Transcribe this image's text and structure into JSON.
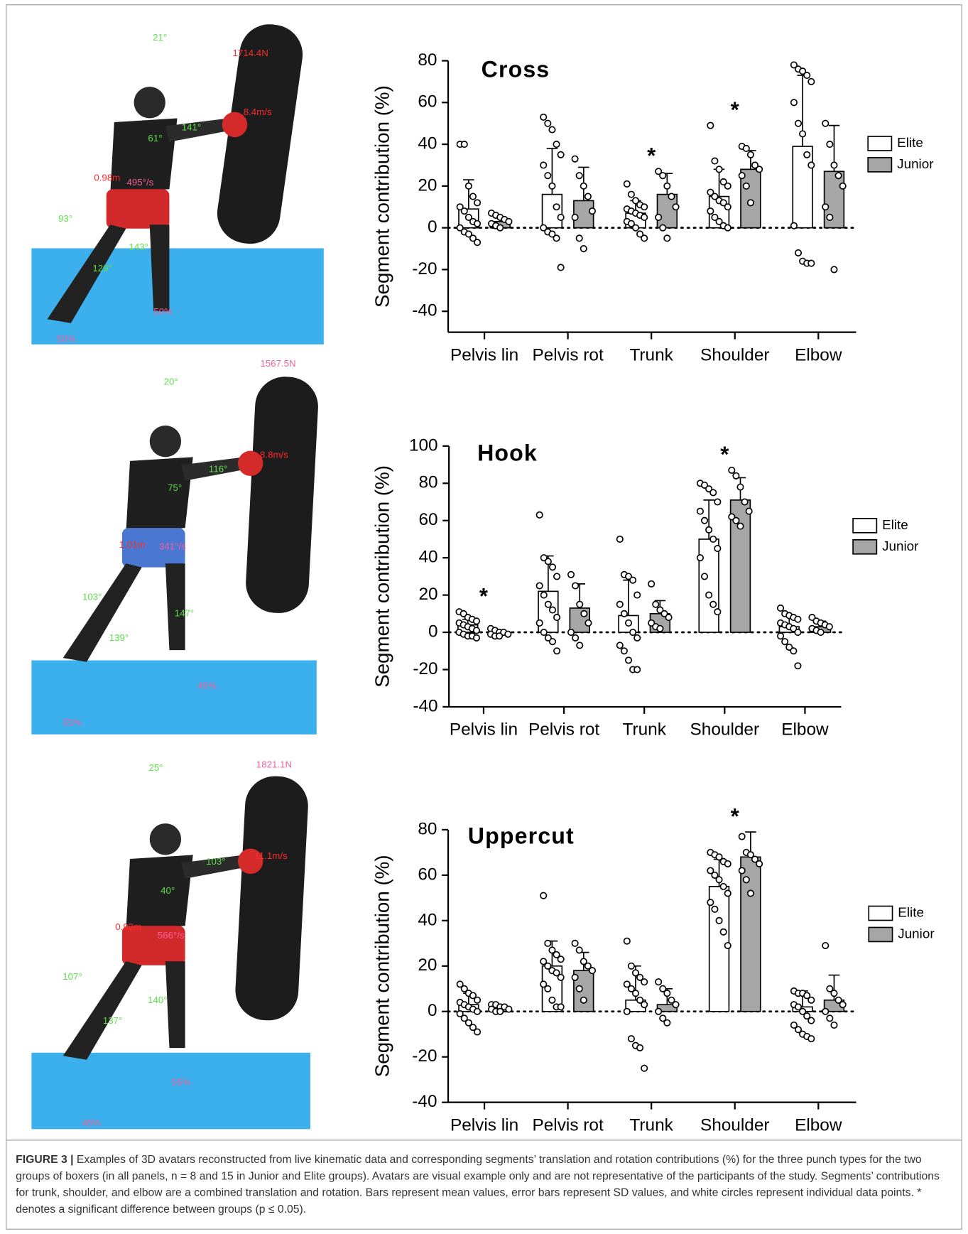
{
  "chart_data": [
    {
      "type": "bar",
      "title": "Cross",
      "y_label": "Segment contribution (%)",
      "categories": [
        "Pelvis lin",
        "Pelvis rot",
        "Trunk",
        "Shoulder",
        "Elbow"
      ],
      "ylim": [
        -50,
        80
      ],
      "yticks": [
        -40,
        -20,
        0,
        20,
        40,
        60,
        80
      ],
      "legend": "right",
      "annotations": [
        {
          "text": "*",
          "category": 2
        },
        {
          "text": "*",
          "category": 3
        }
      ],
      "series": [
        {
          "name": "Elite",
          "color": "#ffffff",
          "values": [
            9,
            16,
            7,
            15,
            39
          ],
          "errors": [
            14,
            22,
            6,
            13,
            34
          ],
          "points": [
            [
              40,
              40,
              20,
              15,
              12,
              10,
              8,
              5,
              3,
              2,
              0,
              -2,
              -3,
              -5,
              -7
            ],
            [
              53,
              50,
              47,
              40,
              35,
              30,
              25,
              20,
              10,
              5,
              0,
              -2,
              -3,
              -5,
              -19
            ],
            [
              21,
              16,
              13,
              11,
              10,
              9,
              8,
              7,
              6,
              5,
              3,
              2,
              0,
              -3,
              -5
            ],
            [
              49,
              32,
              28,
              22,
              20,
              17,
              15,
              13,
              12,
              10,
              8,
              5,
              3,
              1,
              0
            ],
            [
              78,
              76,
              75,
              73,
              70,
              60,
              50,
              45,
              35,
              30,
              1,
              -12,
              -16,
              -17,
              -17
            ]
          ]
        },
        {
          "name": "Junior",
          "color": "#a6a6a6",
          "values": [
            3,
            13,
            16,
            28,
            27
          ],
          "errors": [
            2,
            16,
            10,
            9,
            22
          ],
          "points": [
            [
              7,
              6,
              5,
              4,
              3,
              2,
              1,
              0
            ],
            [
              33,
              25,
              20,
              15,
              8,
              5,
              -5,
              -10
            ],
            [
              27,
              25,
              20,
              15,
              10,
              5,
              0,
              -5
            ],
            [
              39,
              38,
              35,
              30,
              28,
              25,
              20,
              12
            ],
            [
              50,
              40,
              30,
              25,
              20,
              10,
              5,
              -20
            ]
          ]
        }
      ]
    },
    {
      "type": "bar",
      "title": "Hook",
      "y_label": "Segment contribution (%)",
      "categories": [
        "Pelvis lin",
        "Pelvis rot",
        "Trunk",
        "Shoulder",
        "Elbow"
      ],
      "ylim": [
        -40,
        100
      ],
      "yticks": [
        -40,
        -20,
        0,
        20,
        40,
        60,
        80,
        100
      ],
      "legend": "right",
      "annotations": [
        {
          "text": "*",
          "category": 0
        },
        {
          "text": "*",
          "category": 3
        }
      ],
      "series": [
        {
          "name": "Elite",
          "color": "#ffffff",
          "values": [
            4,
            22,
            9,
            50,
            3
          ],
          "errors": [
            3,
            19,
            19,
            21,
            6
          ],
          "points": [
            [
              11,
              10,
              8,
              7,
              6,
              5,
              4,
              3,
              2,
              1,
              0,
              -1,
              -2,
              -2,
              -3
            ],
            [
              63,
              40,
              38,
              35,
              30,
              25,
              20,
              15,
              12,
              8,
              5,
              0,
              -3,
              -5,
              -10
            ],
            [
              50,
              31,
              30,
              28,
              20,
              15,
              10,
              5,
              0,
              -3,
              -7,
              -10,
              -15,
              -20,
              -20
            ],
            [
              80,
              79,
              77,
              75,
              70,
              65,
              60,
              55,
              50,
              45,
              40,
              30,
              20,
              15,
              11
            ],
            [
              13,
              10,
              9,
              8,
              7,
              5,
              4,
              3,
              2,
              0,
              -2,
              -5,
              -8,
              -10,
              -18
            ]
          ]
        },
        {
          "name": "Junior",
          "color": "#a6a6a6",
          "values": [
            0,
            13,
            10,
            71,
            3
          ],
          "errors": [
            1,
            13,
            7,
            12,
            3
          ],
          "points": [
            [
              2,
              1,
              0,
              0,
              -1,
              -1,
              -2,
              -2
            ],
            [
              31,
              25,
              15,
              10,
              5,
              0,
              -3,
              -7
            ],
            [
              26,
              15,
              12,
              10,
              8,
              5,
              3,
              2
            ],
            [
              87,
              84,
              78,
              70,
              65,
              62,
              60,
              57
            ],
            [
              8,
              6,
              5,
              4,
              3,
              2,
              1,
              0
            ]
          ]
        }
      ]
    },
    {
      "type": "bar",
      "title": "Uppercut",
      "y_label": "Segment contribution (%)",
      "categories": [
        "Pelvis lin",
        "Pelvis rot",
        "Trunk",
        "Shoulder",
        "Elbow"
      ],
      "ylim": [
        -40,
        80
      ],
      "yticks": [
        -40,
        -20,
        0,
        20,
        40,
        60,
        80
      ],
      "legend": "right",
      "annotations": [
        {
          "text": "*",
          "category": 3
        }
      ],
      "series": [
        {
          "name": "Elite",
          "color": "#ffffff",
          "values": [
            3,
            20,
            5,
            55,
            2
          ],
          "errors": [
            5,
            11,
            15,
            12,
            7
          ],
          "points": [
            [
              12,
              10,
              8,
              7,
              5,
              4,
              3,
              2,
              1,
              0,
              -1,
              -3,
              -5,
              -7,
              -9
            ],
            [
              51,
              30,
              27,
              25,
              23,
              22,
              20,
              18,
              17,
              15,
              12,
              10,
              5,
              2,
              2
            ],
            [
              31,
              20,
              17,
              15,
              13,
              12,
              10,
              8,
              5,
              3,
              0,
              -12,
              -15,
              -16,
              -25
            ],
            [
              70,
              69,
              68,
              66,
              65,
              62,
              60,
              58,
              55,
              52,
              48,
              45,
              40,
              35,
              29
            ],
            [
              9,
              8,
              8,
              7,
              5,
              3,
              2,
              0,
              -2,
              -4,
              -6,
              -8,
              -10,
              -11,
              -12
            ]
          ]
        },
        {
          "name": "Junior",
          "color": "#a6a6a6",
          "values": [
            1,
            18,
            3,
            68,
            5
          ],
          "errors": [
            1,
            8,
            7,
            11,
            11
          ],
          "points": [
            [
              3,
              3,
              2,
              2,
              1,
              1,
              0,
              0
            ],
            [
              30,
              27,
              22,
              20,
              18,
              15,
              10,
              5
            ],
            [
              13,
              10,
              8,
              5,
              3,
              0,
              -3,
              -5
            ],
            [
              77,
              70,
              69,
              67,
              65,
              62,
              58,
              52
            ],
            [
              29,
              10,
              8,
              5,
              3,
              0,
              -3,
              -6
            ]
          ]
        }
      ]
    }
  ],
  "images": [
    {
      "labels": [
        "21°",
        "1714.4N",
        "8.4m/s",
        "141°",
        "61°",
        "0.98m",
        "495°/s",
        "93°",
        "143°",
        "129°",
        "50%",
        "50%"
      ]
    },
    {
      "labels": [
        "1567.5N",
        "20°",
        "8.8m/s",
        "116°",
        "75°",
        "1.01m",
        "341°/s",
        "103°",
        "147°",
        "139°",
        "45%",
        "55%"
      ]
    },
    {
      "labels": [
        "25°",
        "1821.1N",
        "11.1m/s",
        "103°",
        "40°",
        "0.92m",
        "566°/s",
        "107°",
        "140°",
        "137°",
        "55%",
        "45%"
      ]
    }
  ],
  "caption": {
    "label": "FIGURE 3 |",
    "text": "Examples of 3D avatars reconstructed from live kinematic data and corresponding segments’ translation and rotation contributions (%) for the three punch types for the two groups of boxers (in all panels, n = 8 and 15 in Junior and Elite groups). Avatars are visual example only and are not representative of the participants of the study. Segments’ contributions for trunk, shoulder, and elbow are a combined translation and rotation. Bars represent mean values, error bars represent SD values, and white circles represent individual data points. * denotes a significant difference between groups (p ≤ 0.05)."
  }
}
